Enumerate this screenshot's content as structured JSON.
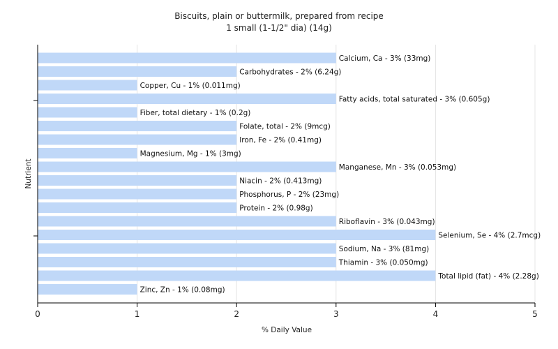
{
  "chart_data": {
    "type": "bar",
    "orientation": "horizontal",
    "title": "Biscuits, plain or buttermilk, prepared from recipe",
    "subtitle": "1 small (1-1/2\" dia) (14g)",
    "xlabel": "% Daily Value",
    "ylabel": "Nutrient",
    "xlim": [
      0,
      5
    ],
    "xticks": [
      "0",
      "1",
      "2",
      "3",
      "4",
      "5"
    ],
    "grid": true,
    "bar_color": "#c0d8f8",
    "bars": [
      {
        "name": "Calcium, Ca",
        "value": 3,
        "label": "Calcium, Ca - 3% (33mg)"
      },
      {
        "name": "Carbohydrates",
        "value": 2,
        "label": "Carbohydrates - 2% (6.24g)"
      },
      {
        "name": "Copper, Cu",
        "value": 1,
        "label": "Copper, Cu - 1% (0.011mg)"
      },
      {
        "name": "Fatty acids, total saturated",
        "value": 3,
        "label": "Fatty acids, total saturated - 3% (0.605g)"
      },
      {
        "name": "Fiber, total dietary",
        "value": 1,
        "label": "Fiber, total dietary - 1% (0.2g)"
      },
      {
        "name": "Folate, total",
        "value": 2,
        "label": "Folate, total - 2% (9mcg)"
      },
      {
        "name": "Iron, Fe",
        "value": 2,
        "label": "Iron, Fe - 2% (0.41mg)"
      },
      {
        "name": "Magnesium, Mg",
        "value": 1,
        "label": "Magnesium, Mg - 1% (3mg)"
      },
      {
        "name": "Manganese, Mn",
        "value": 3,
        "label": "Manganese, Mn - 3% (0.053mg)"
      },
      {
        "name": "Niacin",
        "value": 2,
        "label": "Niacin - 2% (0.413mg)"
      },
      {
        "name": "Phosphorus, P",
        "value": 2,
        "label": "Phosphorus, P - 2% (23mg)"
      },
      {
        "name": "Protein",
        "value": 2,
        "label": "Protein - 2% (0.98g)"
      },
      {
        "name": "Riboflavin",
        "value": 3,
        "label": "Riboflavin - 3% (0.043mg)"
      },
      {
        "name": "Selenium, Se",
        "value": 4,
        "label": "Selenium, Se - 4% (2.7mcg)"
      },
      {
        "name": "Sodium, Na",
        "value": 3,
        "label": "Sodium, Na - 3% (81mg)"
      },
      {
        "name": "Thiamin",
        "value": 3,
        "label": "Thiamin - 3% (0.050mg)"
      },
      {
        "name": "Total lipid (fat)",
        "value": 4,
        "label": "Total lipid (fat) - 4% (2.28g)"
      },
      {
        "name": "Zinc, Zn",
        "value": 1,
        "label": "Zinc, Zn - 1% (0.08mg)"
      }
    ]
  }
}
